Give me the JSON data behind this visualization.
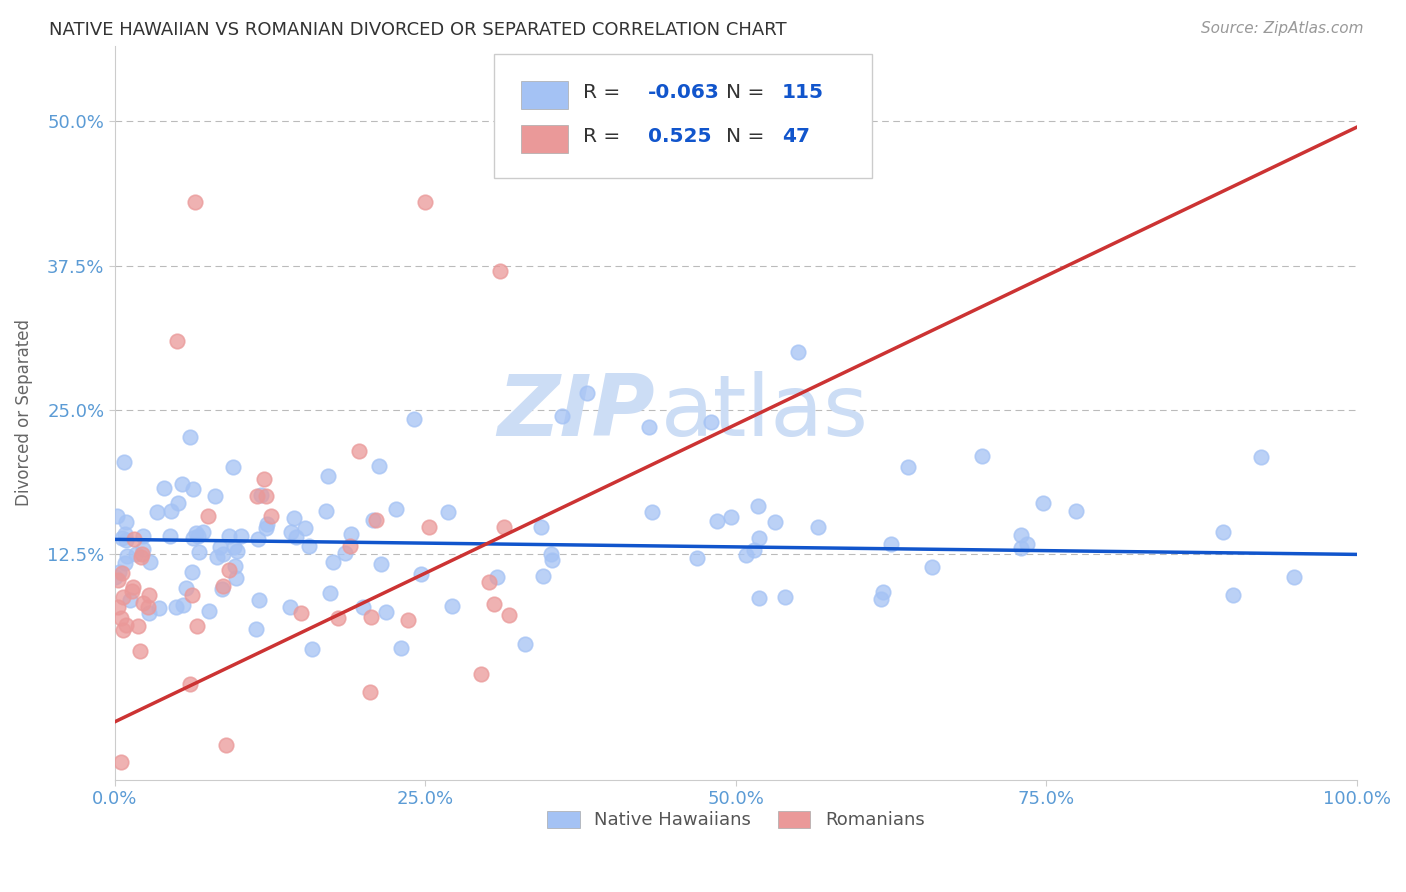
{
  "title": "NATIVE HAWAIIAN VS ROMANIAN DIVORCED OR SEPARATED CORRELATION CHART",
  "source": "Source: ZipAtlas.com",
  "ylabel": "Divorced or Separated",
  "xlim": [
    0.0,
    1.0
  ],
  "ylim": [
    -0.07,
    0.565
  ],
  "yticks": [
    0.125,
    0.25,
    0.375,
    0.5
  ],
  "ytick_labels": [
    "12.5%",
    "25.0%",
    "37.5%",
    "50.0%"
  ],
  "xticks": [
    0.0,
    0.25,
    0.5,
    0.75,
    1.0
  ],
  "xtick_labels": [
    "0.0%",
    "25.0%",
    "50.0%",
    "75.0%",
    "100.0%"
  ],
  "blue_R": -0.063,
  "blue_N": 115,
  "pink_R": 0.525,
  "pink_N": 47,
  "blue_marker_color": "#a4c2f4",
  "pink_marker_color": "#ea9999",
  "blue_line_color": "#1155cc",
  "pink_line_color": "#cc3333",
  "blue_line_start_y": 0.138,
  "blue_line_end_y": 0.125,
  "pink_line_start_y": -0.02,
  "pink_line_end_y": 0.495,
  "watermark_text": "ZIP",
  "watermark_text2": "atlas",
  "watermark_color": "#ccddf5",
  "legend_label_blue": "Native Hawaiians",
  "legend_label_pink": "Romanians",
  "background_color": "#ffffff",
  "grid_color": "#bbbbbb",
  "title_color": "#333333",
  "tick_label_color": "#5b9bd5",
  "legend_R_color": "#333333",
  "legend_val_color": "#1155cc",
  "spine_color": "#cccccc"
}
